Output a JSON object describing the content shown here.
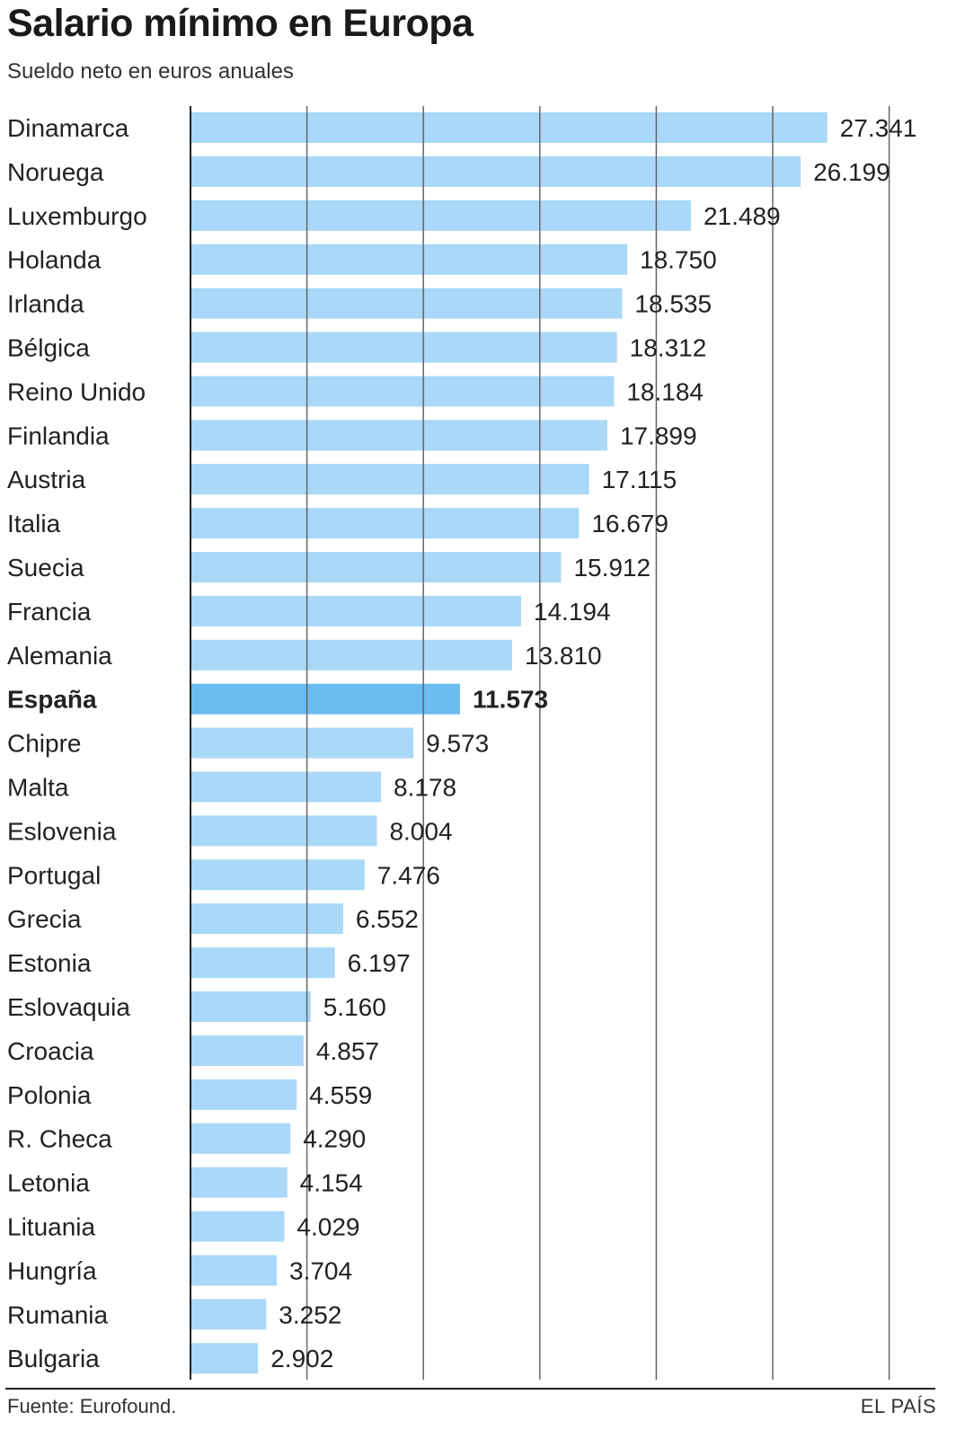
{
  "header": {
    "title": "Salario mínimo en Europa",
    "subtitle": "Sueldo neto en euros anuales"
  },
  "footer": {
    "source": "Fuente: Eurofound.",
    "brand": "EL PAÍS"
  },
  "colors": {
    "bar": "#a9d8f8",
    "highlight_bar": "#6cbcf0",
    "grid": "#666666",
    "axis": "#222222"
  },
  "chart_data": {
    "type": "bar",
    "orientation": "horizontal",
    "title": "Salario mínimo en Europa",
    "subtitle": "Sueldo neto en euros anuales",
    "categories": [
      "Dinamarca",
      "Noruega",
      "Luxemburgo",
      "Holanda",
      "Irlanda",
      "Bélgica",
      "Reino Unido",
      "Finlandia",
      "Austria",
      "Italia",
      "Suecia",
      "Francia",
      "Alemania",
      "España",
      "Chipre",
      "Malta",
      "Eslovenia",
      "Portugal",
      "Grecia",
      "Estonia",
      "Eslovaquia",
      "Croacia",
      "Polonia",
      "R. Checa",
      "Letonia",
      "Lituania",
      "Hungría",
      "Rumania",
      "Bulgaria"
    ],
    "values": [
      27341,
      26199,
      21489,
      18750,
      18535,
      18312,
      18184,
      17899,
      17115,
      16679,
      15912,
      14194,
      13810,
      11573,
      9573,
      8178,
      8004,
      7476,
      6552,
      6197,
      5160,
      4857,
      4559,
      4290,
      4154,
      4029,
      3704,
      3252,
      2902
    ],
    "value_labels": [
      "27.341",
      "26.199",
      "21.489",
      "18.750",
      "18.535",
      "18.312",
      "18.184",
      "17.899",
      "17.115",
      "16.679",
      "15.912",
      "14.194",
      "13.810",
      "11.573",
      "9.573",
      "8.178",
      "8.004",
      "7.476",
      "6.552",
      "6.197",
      "5.160",
      "4.857",
      "4.559",
      "4.290",
      "4.154",
      "4.029",
      "3.704",
      "3.252",
      "2.902"
    ],
    "highlight": "España",
    "xlim": [
      0,
      30000
    ],
    "gridlines": [
      5000,
      10000,
      15000,
      20000,
      25000,
      30000
    ],
    "grid": true,
    "legend": false
  }
}
